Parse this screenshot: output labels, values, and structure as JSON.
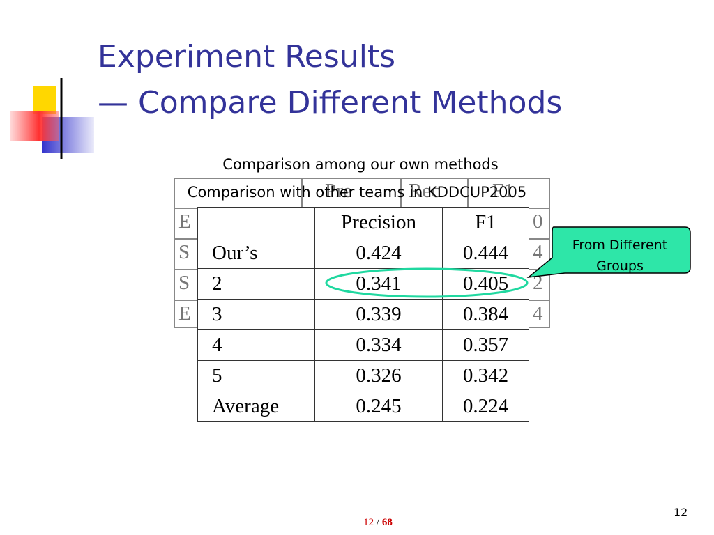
{
  "title": {
    "line1": "Experiment Results",
    "line2": "— Compare Different Methods"
  },
  "captions": [
    "Comparison among our own methods",
    "Comparison with other teams in KDDCUP2005"
  ],
  "back_table": {
    "header": [
      "Pre",
      "Rec",
      "F1"
    ],
    "rows": [
      [
        "E",
        "0"
      ],
      [
        "S",
        "4"
      ],
      [
        "S",
        "2"
      ],
      [
        "E",
        "4"
      ]
    ]
  },
  "table": {
    "header": [
      "Precision",
      "F1"
    ],
    "rows": [
      [
        "Our’s",
        "0.424",
        "0.444"
      ],
      [
        "2",
        "0.341",
        "0.405"
      ],
      [
        "3",
        "0.339",
        "0.384"
      ],
      [
        "4",
        "0.334",
        "0.357"
      ],
      [
        "5",
        "0.326",
        "0.342"
      ],
      [
        "Average",
        "0.245",
        "0.224"
      ]
    ]
  },
  "callout": "From Different Groups",
  "slide_number": "12",
  "pager": {
    "current": "12",
    "separator": "/",
    "total": "68"
  }
}
